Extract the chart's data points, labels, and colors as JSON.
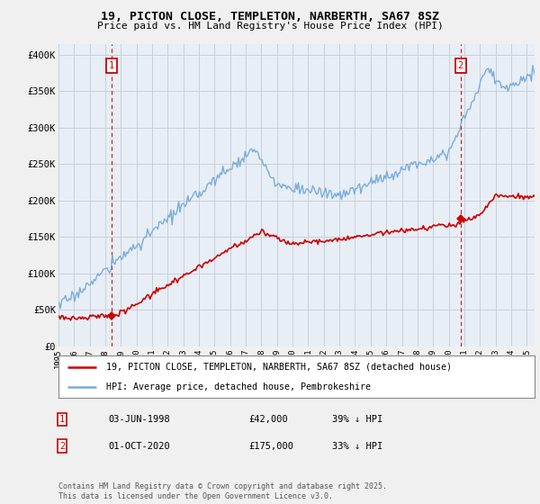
{
  "title_line1": "19, PICTON CLOSE, TEMPLETON, NARBERTH, SA67 8SZ",
  "title_line2": "Price paid vs. HM Land Registry's House Price Index (HPI)",
  "ylabel_ticks": [
    "£0",
    "£50K",
    "£100K",
    "£150K",
    "£200K",
    "£250K",
    "£300K",
    "£350K",
    "£400K"
  ],
  "ytick_values": [
    0,
    50000,
    100000,
    150000,
    200000,
    250000,
    300000,
    350000,
    400000
  ],
  "ylim": [
    0,
    415000
  ],
  "xlim_start": 1995.25,
  "xlim_end": 2025.5,
  "property_color": "#cc0000",
  "hpi_color": "#7aaddb",
  "purchase1_price": 42000,
  "purchase2_price": 175000,
  "legend_property": "19, PICTON CLOSE, TEMPLETON, NARBERTH, SA67 8SZ (detached house)",
  "legend_hpi": "HPI: Average price, detached house, Pembrokeshire",
  "footnote": "Contains HM Land Registry data © Crown copyright and database right 2025.\nThis data is licensed under the Open Government Licence v3.0.",
  "table_row1": [
    "1",
    "03-JUN-1998",
    "£42,000",
    "39% ↓ HPI"
  ],
  "table_row2": [
    "2",
    "01-OCT-2020",
    "£175,000",
    "33% ↓ HPI"
  ],
  "background_color": "#f0f0f0",
  "plot_bg_color": "#e8eef5",
  "grid_color": "#c8d0dc"
}
